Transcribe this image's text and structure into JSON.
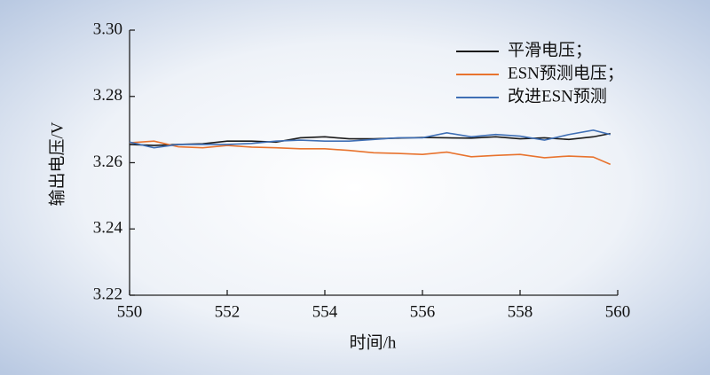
{
  "chart_data": {
    "type": "line",
    "x_label": "时间/h",
    "y_label": "输出电压/V",
    "x": [
      550,
      550.5,
      551,
      551.5,
      552,
      552.5,
      553,
      553.5,
      554,
      554.5,
      555,
      555.5,
      556,
      556.5,
      557,
      557.5,
      558,
      558.5,
      559,
      559.5,
      559.85
    ],
    "series": [
      {
        "name": "平滑电压；",
        "color": "#1a1a1a",
        "values": [
          3.2655,
          3.2652,
          3.2655,
          3.2657,
          3.2665,
          3.2665,
          3.2662,
          3.2675,
          3.2678,
          3.2672,
          3.2672,
          3.2674,
          3.2676,
          3.2675,
          3.2674,
          3.2678,
          3.2672,
          3.2675,
          3.267,
          3.2678,
          3.2688
        ]
      },
      {
        "name": "ESN预测电压；",
        "color": "#e8732e",
        "values": [
          3.266,
          3.2665,
          3.2648,
          3.2645,
          3.2652,
          3.2647,
          3.2645,
          3.2642,
          3.2642,
          3.2637,
          3.263,
          3.2628,
          3.2625,
          3.2632,
          3.2618,
          3.2622,
          3.2625,
          3.2615,
          3.262,
          3.2617,
          3.2595
        ]
      },
      {
        "name": "改进ESN预测",
        "color": "#3f6fb5",
        "values": [
          3.2662,
          3.2645,
          3.2655,
          3.2655,
          3.2655,
          3.2658,
          3.2665,
          3.2668,
          3.2665,
          3.2665,
          3.267,
          3.2675,
          3.2675,
          3.269,
          3.2678,
          3.2685,
          3.268,
          3.2668,
          3.2685,
          3.2698,
          3.2685
        ]
      }
    ],
    "xlim": [
      550,
      560
    ],
    "xticks": [
      550,
      552,
      554,
      556,
      558,
      560
    ],
    "ylim": [
      3.22,
      3.3
    ],
    "yticks": [
      3.22,
      3.24,
      3.26,
      3.28,
      {
        "value": 3.3,
        "label": "3.30"
      }
    ],
    "legend": "top-right",
    "grid": false
  }
}
